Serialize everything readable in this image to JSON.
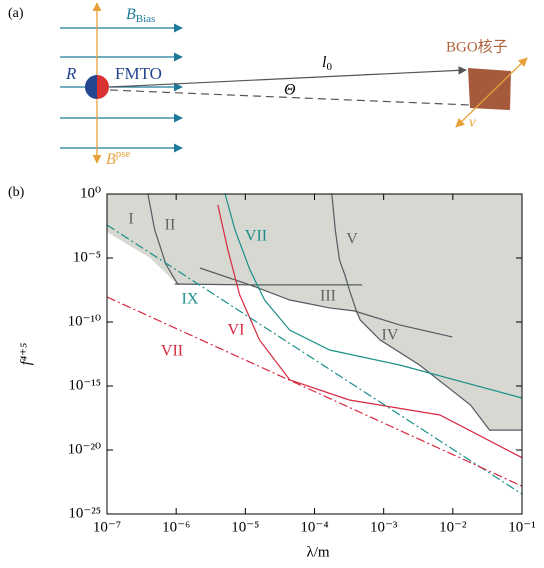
{
  "panel_a": {
    "label": "(a)",
    "b_bias": {
      "symbol": "B",
      "subscript": "Bias"
    },
    "b_pse": {
      "symbol": "B",
      "superscript": "pse"
    },
    "r": "R",
    "fmto": "FMTO",
    "l0": {
      "symbol": "l",
      "subscript": "0"
    },
    "theta": "Θ",
    "target": "BGO核子",
    "v": "v"
  },
  "chart_data": {
    "type": "line",
    "panel_label": "(b)",
    "x_label": "λ/m",
    "y_label": "f⁴⁺⁵",
    "log_x": true,
    "log_y": true,
    "xlim": [
      1e-07,
      0.1
    ],
    "ylim": [
      1e-25,
      1
    ],
    "xticks": [
      {
        "value": 1e-07,
        "label": "10⁻⁷"
      },
      {
        "value": 1e-06,
        "label": "10⁻⁶"
      },
      {
        "value": 1e-05,
        "label": "10⁻⁵"
      },
      {
        "value": 0.0001,
        "label": "10⁻⁴"
      },
      {
        "value": 0.001,
        "label": "10⁻³"
      },
      {
        "value": 0.01,
        "label": "10⁻²"
      },
      {
        "value": 0.1,
        "label": "10⁻¹"
      }
    ],
    "yticks": [
      {
        "value": 1,
        "label": "10⁰"
      },
      {
        "value": 1e-05,
        "label": "10⁻⁵"
      },
      {
        "value": 1e-10,
        "label": "10⁻¹⁰"
      },
      {
        "value": 1e-15,
        "label": "10⁻¹⁵"
      },
      {
        "value": 1e-20,
        "label": "10⁻²⁰"
      },
      {
        "value": 1e-25,
        "label": "10⁻²⁵"
      }
    ],
    "series": [
      {
        "style": "area",
        "color": "#d6d8d1",
        "x": [
          1e-07,
          1e-07,
          4.2e-07,
          1.07e-06,
          1.17e-05,
          4.4e-05,
          0.00038,
          0.00046,
          0.00089,
          0.0033,
          0.018,
          0.034,
          0.1,
          0.1
        ],
        "values": [
          1,
          0.00107,
          1e-05,
          7.8e-08,
          7.8e-08,
          5.2e-09,
          7.2e-10,
          1.4e-10,
          3.9e-12,
          4.4e-14,
          3.3e-17,
          3.6e-19,
          3.6e-19,
          1
        ]
      },
      {
        "style": "solid",
        "color": "#555b60",
        "x": [
          3.9e-07,
          4.9e-07,
          7.1e-07,
          1.07e-06
        ],
        "values": [
          1,
          0.0016,
          3.2e-06,
          7.9e-08
        ]
      },
      {
        "style": "solid",
        "color": "#555b60",
        "x": [
          9.5e-07,
          1.15e-05,
          0.00049
        ],
        "values": [
          9.3e-08,
          7.9e-08,
          7.9e-08
        ]
      },
      {
        "style": "solid",
        "color": "#555b60",
        "x": [
          2.2e-06,
          1.17e-05,
          4.4e-05,
          0.000166,
          0.00038,
          0.0017,
          0.0098
        ],
        "values": [
          1.66e-06,
          7.9e-08,
          5.2e-09,
          1.26e-09,
          7.2e-10,
          5.9e-11,
          6.8e-12
        ]
      },
      {
        "style": "solid",
        "color": "#555b60",
        "x": [
          0.000178,
          0.0002,
          0.00023,
          0.000275,
          0.00032,
          0.0004,
          0.00046,
          0.00089,
          0.0033,
          0.018,
          0.034,
          0.1
        ],
        "values": [
          1,
          0.00155,
          6.9e-06,
          4.7e-07,
          3.2e-08,
          8.7e-10,
          1.4e-10,
          3.9e-12,
          4.4e-14,
          3.3e-17,
          3.6e-19,
          3.6e-19
        ]
      },
      {
        "style": "solid",
        "color": "#1a8f8a",
        "x": [
          5.1e-06,
          7.1e-06,
          1.17e-05,
          1.9e-05,
          4.4e-05,
          0.000166,
          0.0017,
          0.1
        ],
        "values": [
          1,
          0.00155,
          1.15e-06,
          5.2e-09,
          2.3e-11,
          6.5e-13,
          4.4e-14,
          1.15e-16
        ]
      },
      {
        "style": "solid",
        "color": "#d8283f",
        "x": [
          4e-06,
          5.6e-06,
          8.3e-06,
          1.6e-05,
          4.4e-05,
          0.00032,
          0.0065,
          0.1
        ],
        "values": [
          0.14,
          4.2e-05,
          1.3e-08,
          3.9e-12,
          3e-15,
          8.1e-17,
          5.4e-18,
          2.5e-21
        ]
      },
      {
        "style": "dashdot",
        "color": "#1a8f8a",
        "x": [
          1e-07,
          0.1
        ],
        "values": [
          0.0038,
          3.6e-24
        ]
      },
      {
        "style": "dashdot",
        "color": "#d8283f",
        "x": [
          1e-07,
          0.1
        ],
        "values": [
          8.9e-09,
          1.5e-23
        ]
      }
    ],
    "annotations": [
      {
        "text": "I",
        "color": "#5f6366"
      },
      {
        "text": "II",
        "color": "#5f6366"
      },
      {
        "text": "III",
        "color": "#5f6366"
      },
      {
        "text": "IV",
        "color": "#5f6366"
      },
      {
        "text": "V",
        "color": "#5f6366"
      },
      {
        "text": "VII",
        "color": "#1a8f8a"
      },
      {
        "text": "IX",
        "color": "#1a8f8a"
      },
      {
        "text": "VI",
        "color": "#d8283f"
      },
      {
        "text": "VII",
        "color": "#d8283f"
      }
    ]
  }
}
